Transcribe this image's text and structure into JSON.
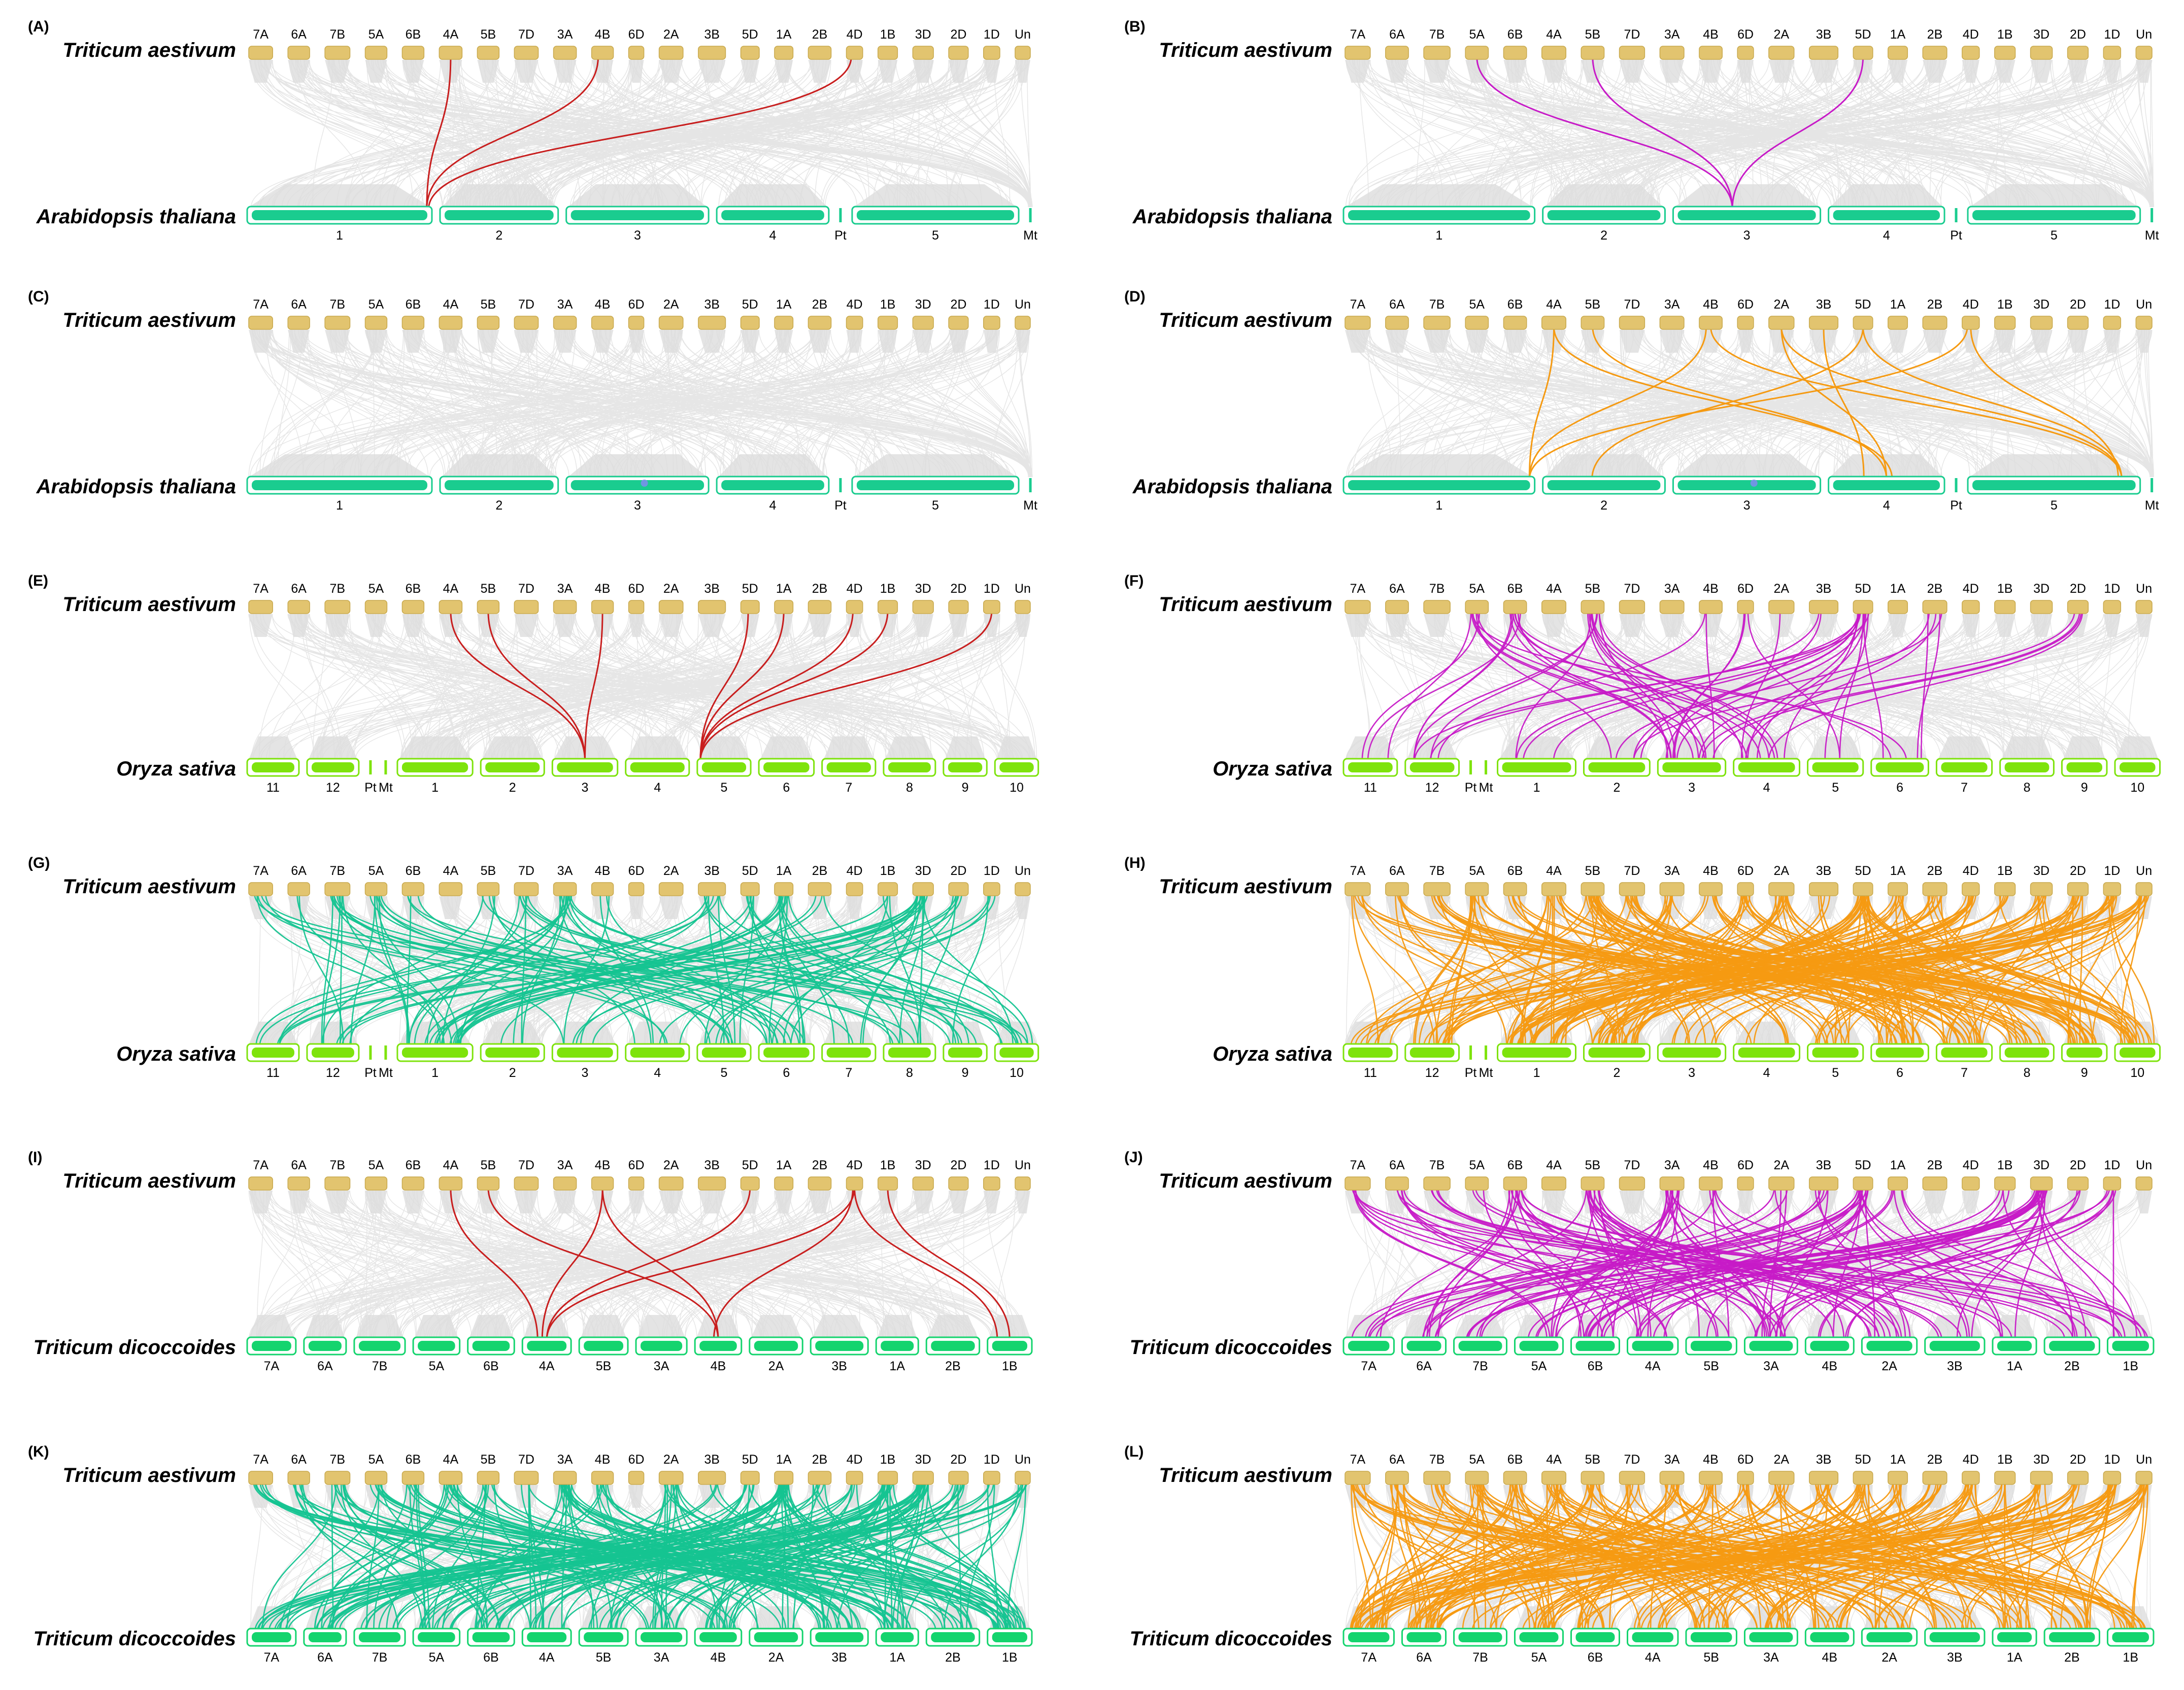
{
  "colors": {
    "wheat": "#E2C46F",
    "wheat_stroke": "#C8A94E",
    "arabidopsis": "#1ACC8F",
    "rice": "#7EE30C",
    "dicoccoides": "#14D46E",
    "bg_link": "#DADADA",
    "red": "#C81E1E",
    "magenta": "#C71AC7",
    "teal": "#15C491",
    "orange": "#F59A12"
  },
  "wheat_chr": [
    "7A",
    "6A",
    "7B",
    "5A",
    "6B",
    "4A",
    "5B",
    "7D",
    "3A",
    "4B",
    "6D",
    "2A",
    "3B",
    "5D",
    "1A",
    "2B",
    "4D",
    "1B",
    "3D",
    "2D",
    "1D",
    "Un"
  ],
  "wheat_size": [
    1.1,
    1.0,
    1.15,
    1.0,
    1.0,
    1.05,
    1.0,
    1.1,
    1.05,
    1.0,
    0.7,
    1.1,
    1.25,
    0.85,
    0.85,
    1.05,
    0.75,
    0.9,
    0.95,
    0.9,
    0.75,
    0.7
  ],
  "arab_chr": [
    "1",
    "2",
    "3",
    "4",
    "Pt",
    "5",
    "Mt"
  ],
  "arab_size": [
    30,
    19,
    23,
    18,
    0.5,
    27,
    0.5
  ],
  "rice_chr": [
    "11",
    "12",
    "Pt",
    "Mt",
    "1",
    "2",
    "3",
    "4",
    "5",
    "6",
    "7",
    "8",
    "9",
    "10"
  ],
  "rice_size": [
    29,
    29,
    0.5,
    0.5,
    43,
    36,
    37,
    36,
    30,
    31,
    30,
    29,
    24,
    24
  ],
  "dic_chr": [
    "7A",
    "6A",
    "7B",
    "5A",
    "6B",
    "4A",
    "5B",
    "3A",
    "4B",
    "2A",
    "3B",
    "1A",
    "2B",
    "1B"
  ],
  "dic_size": [
    1.05,
    0.9,
    1.1,
    1.0,
    1.0,
    1.05,
    1.05,
    1.1,
    1.0,
    1.15,
    1.25,
    0.9,
    1.15,
    0.95
  ],
  "panels": [
    {
      "label": "(A)",
      "top_species": "Triticum aestivum",
      "bottom_species": "Arabidopsis thaliana",
      "bottom": "arab",
      "color": "red",
      "dense": false,
      "links": [
        [
          5,
          0.5,
          0,
          0.98
        ],
        [
          9,
          0.3,
          0,
          0.98
        ],
        [
          16,
          0.3,
          0,
          0.99
        ]
      ]
    },
    {
      "label": "(B)",
      "top_species": "Triticum aestivum",
      "bottom_species": "Arabidopsis thaliana",
      "bottom": "arab",
      "color": "magenta",
      "dense": false,
      "links": [
        [
          3,
          0.5,
          2,
          0.4
        ],
        [
          6,
          0.5,
          2,
          0.4
        ],
        [
          13,
          0.5,
          2,
          0.4
        ]
      ]
    },
    {
      "label": "(C)",
      "top_species": "Triticum aestivum",
      "bottom_species": "Arabidopsis thaliana",
      "bottom": "arab",
      "color": "red",
      "dense": false,
      "links": []
    },
    {
      "label": "(D)",
      "top_species": "Triticum aestivum",
      "bottom_species": "Arabidopsis thaliana",
      "bottom": "arab",
      "color": "orange",
      "dense": false,
      "links": [
        [
          5,
          0.5,
          0,
          0.98
        ],
        [
          5,
          0.5,
          3,
          0.55
        ],
        [
          6,
          0.5,
          3,
          0.5
        ],
        [
          9,
          0.3,
          0,
          0.98
        ],
        [
          9,
          0.5,
          5,
          0.9
        ],
        [
          11,
          0.5,
          3,
          0.5
        ],
        [
          11,
          0.5,
          5,
          0.9
        ],
        [
          12,
          0.5,
          3,
          0.3
        ],
        [
          13,
          0.5,
          5,
          0.9
        ],
        [
          13,
          0.5,
          1,
          0.4
        ],
        [
          16,
          0.3,
          0,
          0.98
        ],
        [
          16,
          0.5,
          5,
          0.88
        ]
      ]
    },
    {
      "label": "(E)",
      "top_species": "Triticum aestivum",
      "bottom_species": "Oryza sativa",
      "bottom": "rice",
      "color": "red",
      "dense": false,
      "links": [
        [
          5,
          0.5,
          6,
          0.5
        ],
        [
          6,
          0.5,
          6,
          0.5
        ],
        [
          9,
          0.5,
          6,
          0.5
        ],
        [
          13,
          0.4,
          8,
          0.03
        ],
        [
          14,
          0.5,
          8,
          0.03
        ],
        [
          16,
          0.4,
          8,
          0.03
        ],
        [
          17,
          0.5,
          8,
          0.03
        ],
        [
          20,
          0.5,
          8,
          0.03
        ]
      ]
    },
    {
      "label": "(F)",
      "top_species": "Triticum aestivum",
      "bottom_species": "Oryza sativa",
      "bottom": "rice",
      "color": "magenta",
      "dense": true,
      "n": 55,
      "seed": 17,
      "srcs": [
        3,
        3,
        3,
        4,
        4,
        6,
        6,
        6,
        6,
        9,
        10,
        11,
        12,
        13,
        13,
        13,
        13,
        15,
        17,
        19
      ],
      "dsts": [
        0,
        1,
        4,
        5,
        6,
        6,
        6,
        7,
        7,
        8,
        9,
        5,
        6
      ]
    },
    {
      "label": "(G)",
      "top_species": "Triticum aestivum",
      "bottom_species": "Oryza sativa",
      "bottom": "rice",
      "color": "teal",
      "dense": true,
      "n": 120,
      "seed": 23,
      "srcs": [
        0,
        2,
        3,
        3,
        7,
        8,
        8,
        8,
        12,
        12,
        13,
        14,
        14,
        17,
        18,
        18,
        18,
        19,
        20,
        1,
        4,
        6,
        9,
        15
      ],
      "dsts": [
        0,
        1,
        4,
        4,
        4,
        4,
        5,
        6,
        8,
        8,
        9,
        9,
        10,
        11,
        12,
        13,
        7
      ]
    },
    {
      "label": "(H)",
      "top_species": "Triticum aestivum",
      "bottom_species": "Oryza sativa",
      "bottom": "rice",
      "color": "orange",
      "dense": true,
      "n": 240,
      "seed": 31,
      "srcs": [
        0,
        1,
        2,
        3,
        4,
        5,
        6,
        6,
        7,
        8,
        9,
        10,
        11,
        12,
        13,
        13,
        14,
        15,
        16,
        17,
        18,
        19,
        20,
        21
      ],
      "dsts": [
        0,
        1,
        4,
        4,
        5,
        5,
        6,
        7,
        8,
        9,
        9,
        10,
        10,
        11,
        12,
        12,
        13
      ]
    },
    {
      "label": "(I)",
      "top_species": "Triticum aestivum",
      "bottom_species": "Triticum dicoccoides",
      "bottom": "dic",
      "color": "red",
      "dense": false,
      "links": [
        [
          5,
          0.5,
          5,
          0.3
        ],
        [
          6,
          0.5,
          8,
          0.5
        ],
        [
          9,
          0.5,
          5,
          0.4
        ],
        [
          9,
          0.5,
          8,
          0.5
        ],
        [
          13,
          0.5,
          5,
          0.5
        ],
        [
          16,
          0.5,
          5,
          0.5
        ],
        [
          16,
          0.5,
          13,
          0.2
        ],
        [
          16,
          0.4,
          8,
          0.4
        ],
        [
          17,
          0.5,
          13,
          0.5
        ]
      ]
    },
    {
      "label": "(J)",
      "top_species": "Triticum aestivum",
      "bottom_species": "Triticum dicoccoides",
      "bottom": "dic",
      "color": "magenta",
      "dense": true,
      "n": 130,
      "seed": 41,
      "srcs": [
        0,
        1,
        2,
        3,
        4,
        4,
        6,
        6,
        8,
        8,
        9,
        11,
        12,
        13,
        13,
        13,
        14,
        17,
        18,
        18,
        18,
        19,
        20
      ],
      "dsts": [
        0,
        1,
        2,
        3,
        4,
        5,
        6,
        7,
        7,
        8,
        9,
        10,
        11,
        12,
        13
      ]
    },
    {
      "label": "(K)",
      "top_species": "Triticum aestivum",
      "bottom_species": "Triticum dicoccoides",
      "bottom": "dic",
      "color": "teal",
      "dense": true,
      "n": 230,
      "seed": 53,
      "srcs": [
        0,
        1,
        2,
        3,
        4,
        5,
        6,
        7,
        8,
        8,
        9,
        11,
        12,
        13,
        14,
        14,
        15,
        16,
        17,
        17,
        18,
        18,
        19,
        20,
        21
      ],
      "dsts": [
        0,
        1,
        2,
        3,
        4,
        5,
        6,
        7,
        8,
        9,
        10,
        11,
        12,
        13,
        13
      ]
    },
    {
      "label": "(L)",
      "top_species": "Triticum aestivum",
      "bottom_species": "Triticum dicoccoides",
      "bottom": "dic",
      "color": "orange",
      "dense": true,
      "n": 250,
      "seed": 67,
      "srcs": [
        0,
        1,
        2,
        3,
        4,
        5,
        6,
        7,
        8,
        9,
        10,
        11,
        12,
        13,
        14,
        15,
        16,
        17,
        18,
        19,
        20,
        21
      ],
      "dsts": [
        0,
        1,
        2,
        3,
        4,
        5,
        6,
        7,
        8,
        9,
        10,
        11,
        12,
        13
      ]
    }
  ]
}
